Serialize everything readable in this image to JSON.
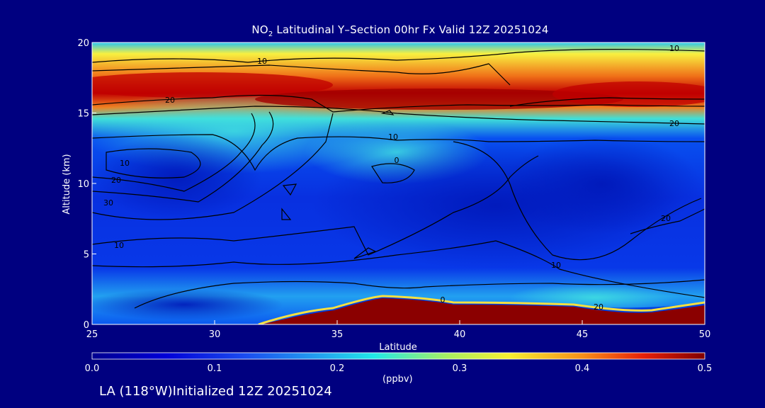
{
  "chart_data": {
    "type": "heatmap",
    "title_prefix": "NO",
    "title_subscript": "2",
    "title_suffix": " Latitudinal Y–Section 00hr  Fx Valid 12Z 20251024",
    "xlabel": "Latitude",
    "ylabel": "Altitude (km)",
    "xlim": [
      25,
      50
    ],
    "ylim": [
      0,
      20
    ],
    "x_ticks": [
      "25",
      "30",
      "35",
      "40",
      "45",
      "50"
    ],
    "y_ticks": [
      "0",
      "5",
      "10",
      "15",
      "20"
    ],
    "colorbar": {
      "ticks": [
        "0.0",
        "0.1",
        "0.2",
        "0.3",
        "0.4",
        "0.5"
      ],
      "range": [
        0.0,
        0.5
      ],
      "unit": "(ppbv)"
    },
    "contour_labels": [
      "10",
      "20",
      "10",
      "20",
      "10",
      "0",
      "10",
      "20",
      "30",
      "20",
      "10",
      "10",
      "0",
      "20"
    ],
    "colors": {
      "background": "#000080",
      "contour": "#000000",
      "text": "#ffffff"
    }
  },
  "footer": "LA (118°W)Initialized 12Z 20251024"
}
